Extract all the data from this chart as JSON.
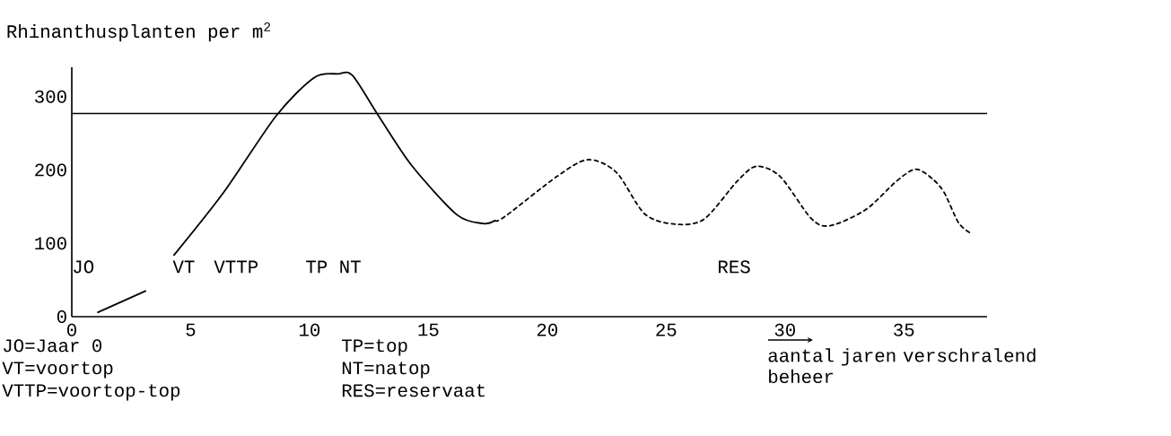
{
  "chart_data": {
    "type": "line",
    "ylabel": "Rhinanthusplanten per m$^{2}$",
    "xlabel": "aantal jaren verschralend beheer",
    "xlim": [
      0,
      38.5
    ],
    "ylim": [
      0,
      340
    ],
    "xticks": [
      0,
      5,
      10,
      15,
      20,
      25,
      30,
      35
    ],
    "yticks": [
      0,
      100,
      200,
      300
    ],
    "grid": false,
    "marker": "none",
    "series": [
      {
        "color": "#000000",
        "line_style": "solid",
        "x": [
          1.1,
          3.1,
          3.7,
          4.3,
          6.4,
          8.6,
          10.2,
          11.2,
          11.8,
          12.9,
          14.3,
          16.2,
          17.3,
          17.8
        ],
        "values": [
          6,
          35,
          null,
          84,
          170,
          274,
          326,
          331,
          329,
          274,
          206,
          139,
          127,
          131
        ]
      },
      {
        "color": "#000000",
        "line_style": "dashed",
        "x": [
          17.8,
          18.2,
          20.4,
          21.7,
          22.9,
          24.1,
          25.4,
          26.6,
          28.0,
          28.8,
          29.8,
          31.1,
          31.9,
          33.4,
          34.7,
          35.5,
          36.2,
          36.7,
          37.3,
          37.8
        ],
        "values": [
          131,
          136,
          191,
          214,
          197,
          140,
          126,
          133,
          185,
          205,
          191,
          134,
          124,
          146,
          185,
          201,
          188,
          169,
          128,
          114
        ]
      }
    ],
    "ref_lines": [
      {
        "axis": "y",
        "value": 277,
        "color": "#000000"
      }
    ],
    "annotations": [
      "JO",
      "VT",
      "VTTP",
      "TP NT",
      "RES",
      "JO=Jaar 0",
      "VT=voortop",
      "VTTP=voortop-top",
      "TP=top",
      "NT=natop",
      "RES=reservaat"
    ]
  }
}
